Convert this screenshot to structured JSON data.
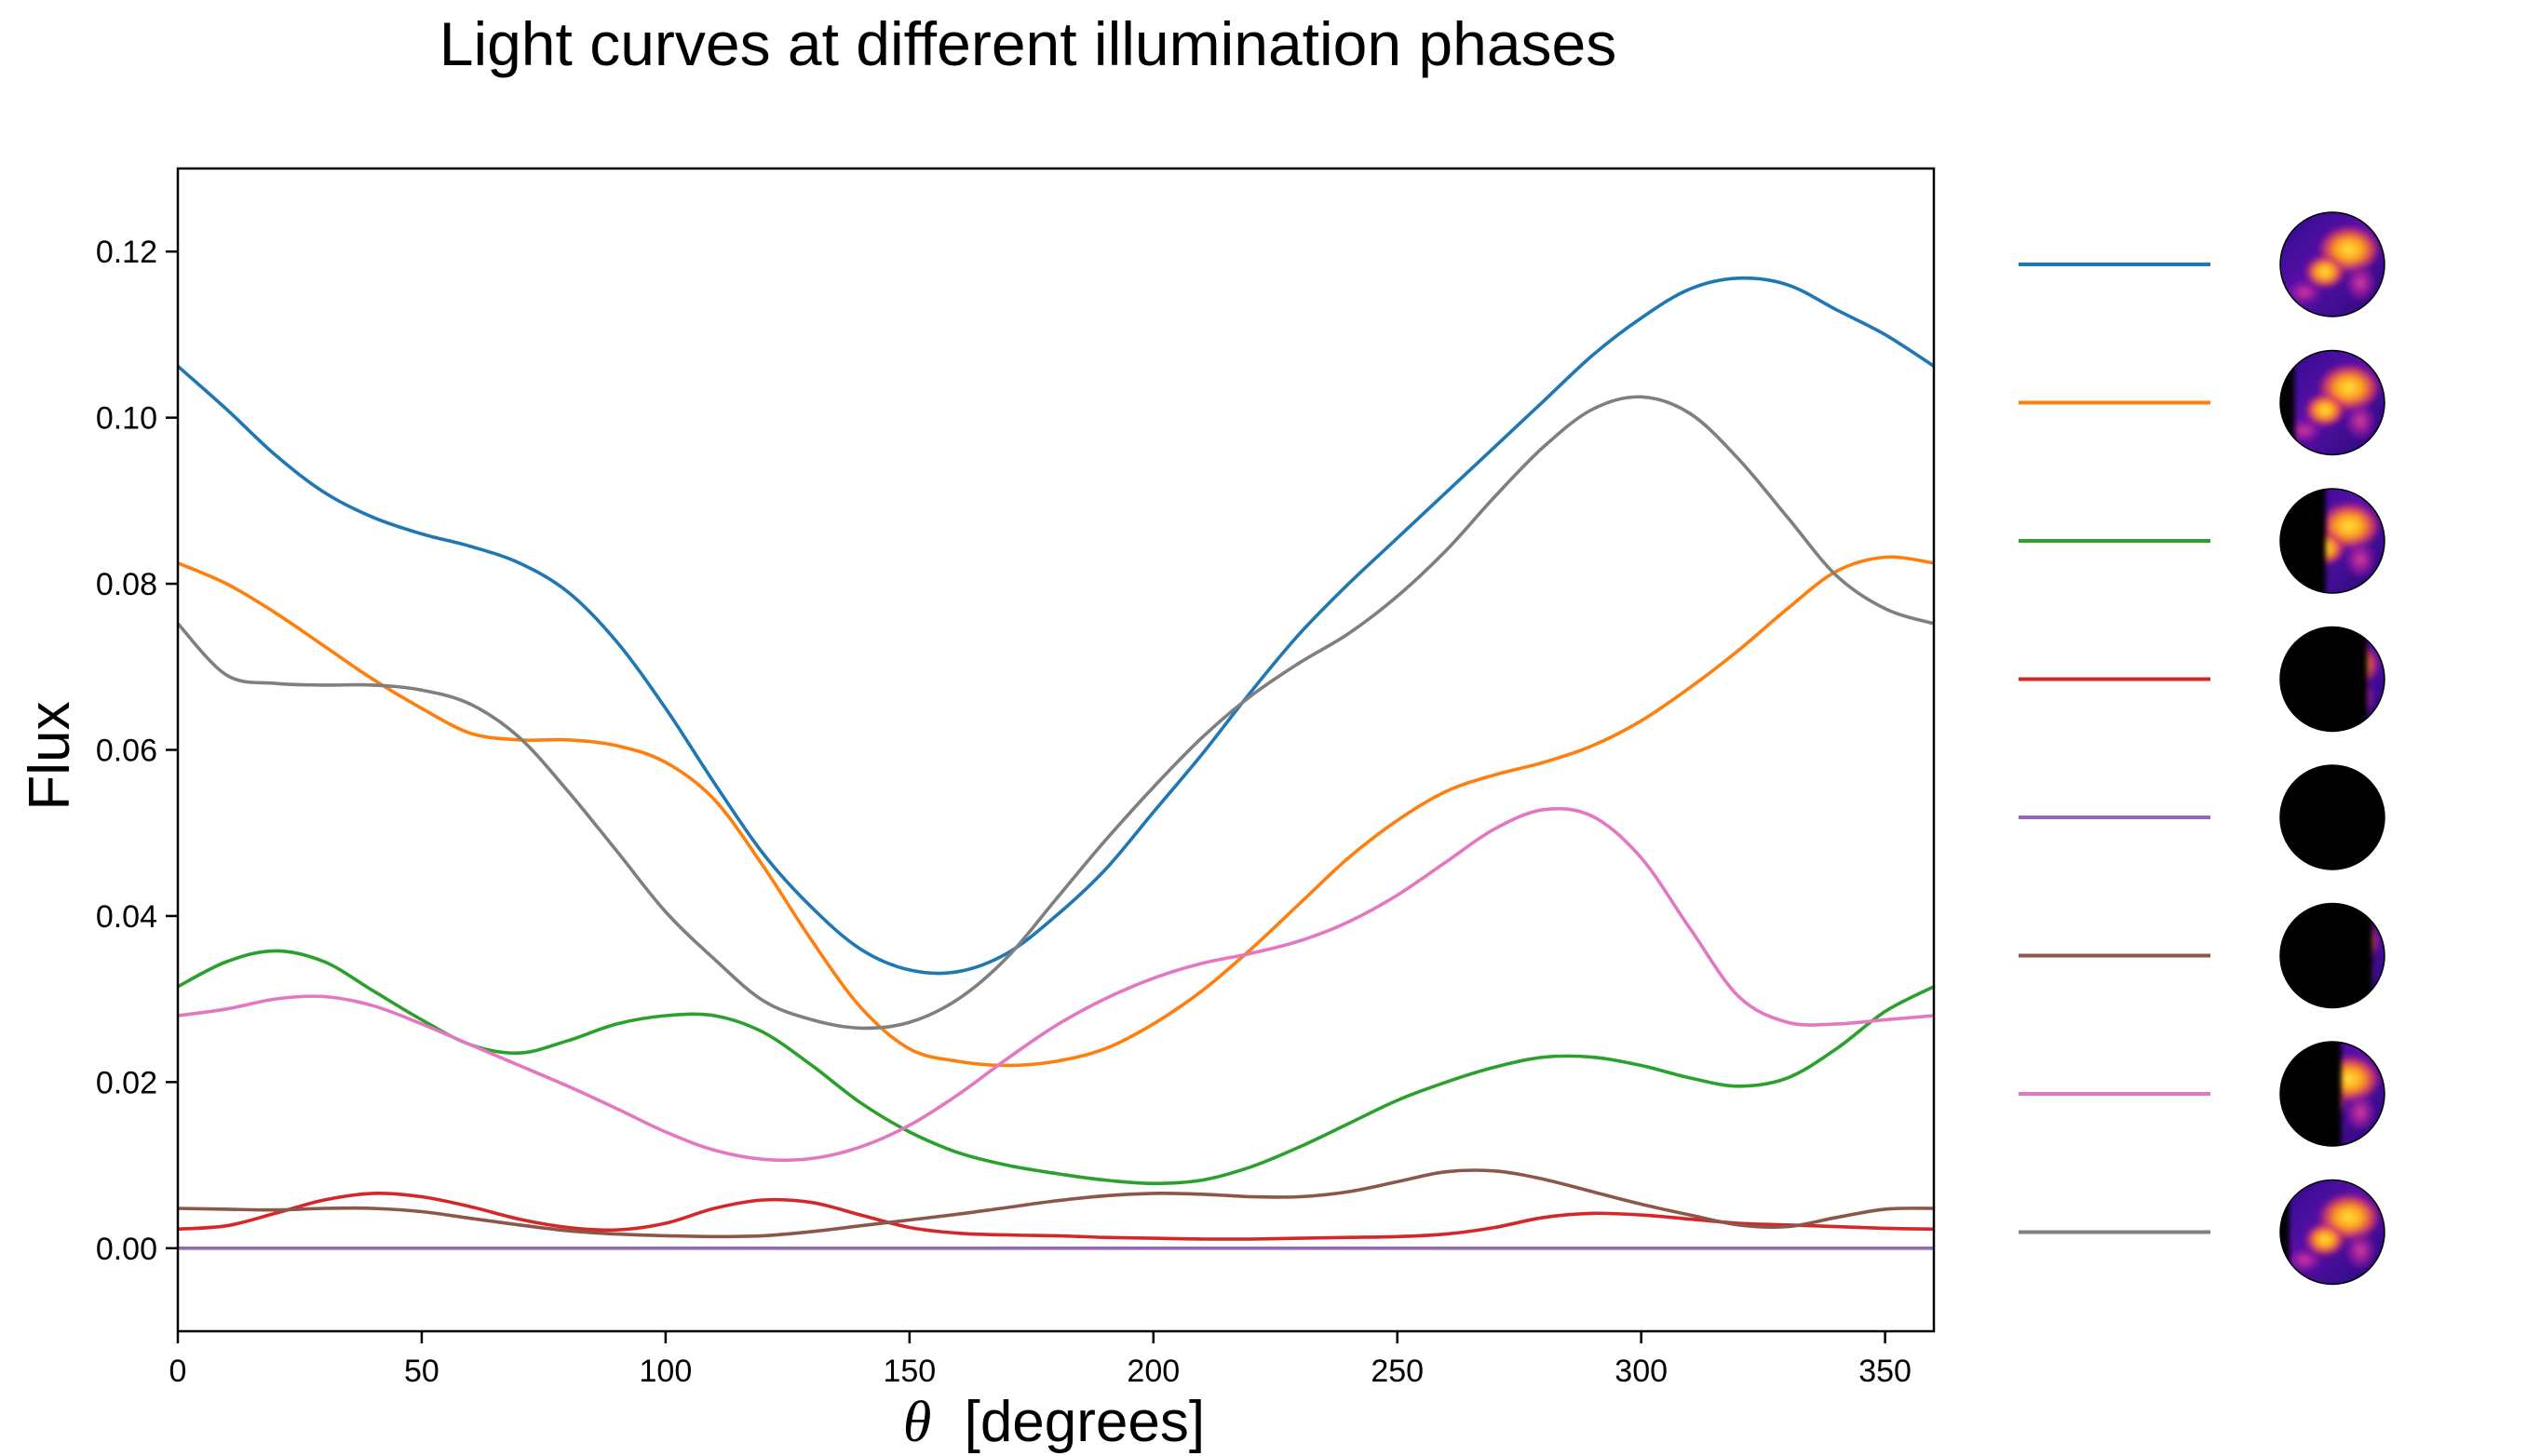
{
  "chart_data": {
    "type": "line",
    "title": "Light curves at different illumination phases",
    "xlabel_symbol": "θ",
    "xlabel": "[degrees]",
    "ylabel": "Flux",
    "xlim": [
      0,
      360
    ],
    "ylim": [
      -0.01,
      0.13
    ],
    "xticks": [
      0,
      50,
      100,
      150,
      200,
      250,
      300,
      350
    ],
    "xtick_labels": [
      "0",
      "50",
      "100",
      "150",
      "200",
      "250",
      "300",
      "350"
    ],
    "yticks": [
      0.0,
      0.02,
      0.04,
      0.06,
      0.08,
      0.1,
      0.12
    ],
    "ytick_labels": [
      "0.00",
      "0.02",
      "0.04",
      "0.06",
      "0.08",
      "0.10",
      "0.12"
    ],
    "grid": false,
    "legend_position": "right",
    "legend_glyph": "planet-phase-map",
    "x": [
      0,
      10,
      20,
      30,
      40,
      50,
      60,
      70,
      80,
      90,
      100,
      110,
      120,
      130,
      140,
      150,
      160,
      170,
      180,
      190,
      200,
      210,
      220,
      230,
      240,
      250,
      260,
      270,
      280,
      290,
      300,
      310,
      320,
      330,
      340,
      350,
      360
    ],
    "series": [
      {
        "color": "#1f77b4",
        "illumination": 1.0,
        "values": [
          0.1062,
          0.101,
          0.0955,
          0.091,
          0.088,
          0.086,
          0.0845,
          0.0825,
          0.079,
          0.073,
          0.065,
          0.056,
          0.0475,
          0.041,
          0.036,
          0.0335,
          0.0333,
          0.0355,
          0.04,
          0.0455,
          0.0525,
          0.0595,
          0.067,
          0.074,
          0.08,
          0.0855,
          0.091,
          0.0965,
          0.102,
          0.1075,
          0.112,
          0.1155,
          0.1168,
          0.116,
          0.113,
          0.11,
          0.1062
        ]
      },
      {
        "color": "#ff7f0e",
        "illumination": 0.9,
        "values": [
          0.0825,
          0.08,
          0.0765,
          0.0725,
          0.0685,
          0.065,
          0.062,
          0.0612,
          0.0612,
          0.0605,
          0.0585,
          0.054,
          0.046,
          0.037,
          0.029,
          0.024,
          0.0225,
          0.022,
          0.0225,
          0.024,
          0.027,
          0.031,
          0.036,
          0.0415,
          0.047,
          0.0515,
          0.055,
          0.057,
          0.0585,
          0.0605,
          0.0635,
          0.0675,
          0.072,
          0.077,
          0.0815,
          0.0832,
          0.0825
        ]
      },
      {
        "color": "#2ca02c",
        "illumination": 0.6,
        "values": [
          0.0315,
          0.0345,
          0.0358,
          0.0345,
          0.031,
          0.0275,
          0.0245,
          0.0235,
          0.025,
          0.027,
          0.028,
          0.028,
          0.026,
          0.022,
          0.0175,
          0.014,
          0.0115,
          0.01,
          0.009,
          0.0082,
          0.0078,
          0.0082,
          0.0098,
          0.0122,
          0.015,
          0.0178,
          0.02,
          0.0218,
          0.023,
          0.023,
          0.022,
          0.0205,
          0.0195,
          0.0205,
          0.024,
          0.0285,
          0.0315
        ]
      },
      {
        "color": "#d62728",
        "illumination": 0.2,
        "values": [
          0.0023,
          0.0027,
          0.0042,
          0.0058,
          0.0066,
          0.0062,
          0.005,
          0.0035,
          0.0025,
          0.0022,
          0.003,
          0.0048,
          0.0058,
          0.0055,
          0.004,
          0.0025,
          0.0018,
          0.0016,
          0.0015,
          0.0013,
          0.0012,
          0.0011,
          0.0011,
          0.0012,
          0.0013,
          0.0014,
          0.0017,
          0.0025,
          0.0037,
          0.0042,
          0.004,
          0.0035,
          0.003,
          0.0028,
          0.0026,
          0.0024,
          0.0023
        ]
      },
      {
        "color": "#9467bd",
        "illumination": 0.0,
        "values": [
          0.0,
          0.0,
          0.0,
          0.0,
          0.0,
          0.0,
          0.0,
          0.0,
          0.0,
          0.0,
          0.0,
          0.0,
          0.0,
          0.0,
          0.0,
          0.0,
          0.0,
          0.0,
          0.0,
          0.0,
          0.0,
          0.0,
          0.0,
          0.0,
          0.0,
          0.0,
          0.0,
          0.0,
          0.0,
          0.0,
          0.0,
          0.0,
          0.0,
          0.0,
          0.0,
          0.0,
          0.0
        ]
      },
      {
        "color": "#8c564b",
        "illumination": 0.15,
        "values": [
          0.0048,
          0.0047,
          0.0046,
          0.0048,
          0.0048,
          0.0044,
          0.0036,
          0.0028,
          0.0021,
          0.0017,
          0.0015,
          0.0014,
          0.0015,
          0.002,
          0.0027,
          0.0034,
          0.0041,
          0.0049,
          0.0057,
          0.0063,
          0.0066,
          0.0065,
          0.0062,
          0.0062,
          0.0068,
          0.008,
          0.0092,
          0.0093,
          0.0083,
          0.0068,
          0.0053,
          0.004,
          0.0028,
          0.0026,
          0.0037,
          0.0047,
          0.0048
        ]
      },
      {
        "color": "#e377c2",
        "illumination": 0.45,
        "values": [
          0.028,
          0.0288,
          0.03,
          0.0303,
          0.0292,
          0.027,
          0.0245,
          0.022,
          0.0195,
          0.0168,
          0.014,
          0.0118,
          0.0107,
          0.0108,
          0.0122,
          0.0148,
          0.0185,
          0.0228,
          0.0268,
          0.03,
          0.0325,
          0.0343,
          0.0355,
          0.037,
          0.0393,
          0.0425,
          0.0465,
          0.0505,
          0.0528,
          0.052,
          0.047,
          0.0385,
          0.0303,
          0.0272,
          0.027,
          0.0275,
          0.028
        ]
      },
      {
        "color": "#7f7f7f",
        "illumination": 0.95,
        "values": [
          0.0752,
          0.069,
          0.068,
          0.0678,
          0.0678,
          0.0672,
          0.0655,
          0.0615,
          0.055,
          0.0478,
          0.0405,
          0.0348,
          0.0298,
          0.0275,
          0.0265,
          0.0272,
          0.03,
          0.035,
          0.042,
          0.049,
          0.0555,
          0.0615,
          0.0665,
          0.0705,
          0.074,
          0.0785,
          0.084,
          0.0905,
          0.0965,
          0.101,
          0.1025,
          0.1005,
          0.095,
          0.088,
          0.081,
          0.077,
          0.0752
        ]
      }
    ]
  }
}
